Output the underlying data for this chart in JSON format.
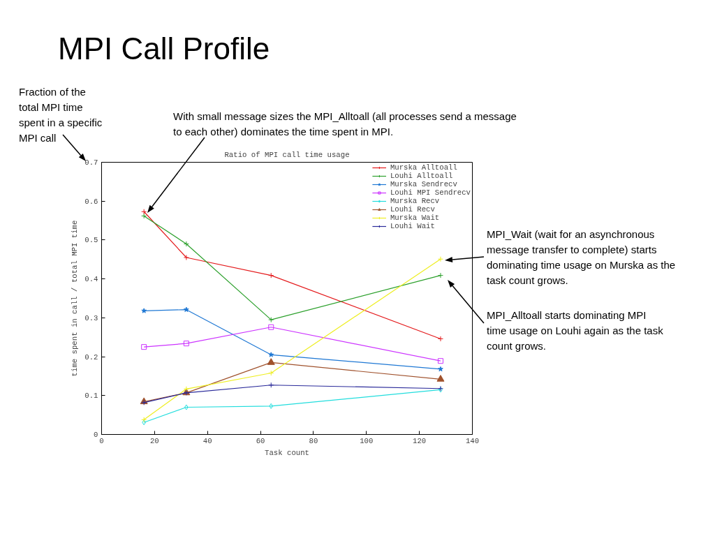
{
  "chart_data": {
    "type": "line",
    "title": "MPI Call Profile",
    "subtitle": "Ratio of MPI call time usage",
    "xlabel": "Task count",
    "ylabel": "time spent in call / total MPI time",
    "x": [
      16,
      32,
      64,
      128
    ],
    "series": [
      {
        "name": "Murska Alltoall",
        "color": "#e41a1c",
        "marker": "cross",
        "values": [
          0.573,
          0.455,
          0.409,
          0.246
        ]
      },
      {
        "name": "Louhi Alltoall",
        "color": "#2ca02c",
        "marker": "cross",
        "values": [
          0.562,
          0.49,
          0.295,
          0.409
        ]
      },
      {
        "name": "Murska Sendrecv",
        "color": "#1f78d4",
        "marker": "star",
        "values": [
          0.318,
          0.321,
          0.205,
          0.168
        ]
      },
      {
        "name": "Louhi MPI Sendrecv",
        "color": "#cc33ff",
        "marker": "square",
        "values": [
          0.225,
          0.234,
          0.276,
          0.189
        ]
      },
      {
        "name": "Murska Recv",
        "color": "#22dddd",
        "marker": "diamond",
        "values": [
          0.031,
          0.07,
          0.073,
          0.115
        ]
      },
      {
        "name": "Louhi Recv",
        "color": "#a0522d",
        "marker": "triangle",
        "values": [
          0.084,
          0.107,
          0.185,
          0.142
        ]
      },
      {
        "name": "Murska Wait",
        "color": "#eeee22",
        "marker": "cross",
        "values": [
          0.038,
          0.117,
          0.158,
          0.451
        ]
      },
      {
        "name": "Louhi Wait",
        "color": "#2a2a9a",
        "marker": "cross",
        "values": [
          0.082,
          0.107,
          0.127,
          0.118
        ]
      }
    ],
    "xlim": [
      0,
      140
    ],
    "xticks": [
      0,
      20,
      40,
      60,
      80,
      100,
      120,
      140
    ],
    "ylim": [
      0,
      0.7
    ],
    "yticks": [
      0,
      0.1,
      0.2,
      0.3,
      0.4,
      0.5,
      0.6,
      0.7
    ],
    "grid": false,
    "legend": "top right",
    "line_style": "solid",
    "annotations": [
      "Fraction of the\ntotal MPI time\nspent in a specific\nMPI call",
      "With small message sizes the MPI_Alltoall (all processes send a message\nto each other) dominates the time spent in MPI.",
      "MPI_Wait (wait for an asynchronous\nmessage transfer to complete) starts\ndominating time usage on Murska as the\ntask count grows.",
      "MPI_Alltoall starts dominating MPI\ntime usage on Louhi again as the task\ncount grows."
    ]
  }
}
